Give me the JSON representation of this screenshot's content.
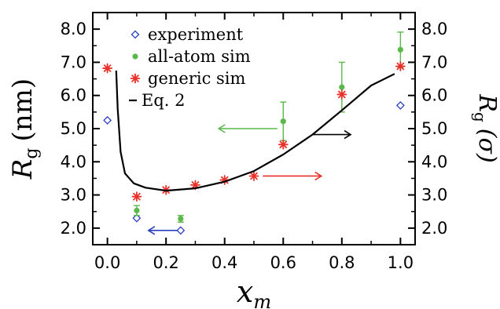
{
  "chart_data": {
    "type": "scatter",
    "x_axis": {
      "label_main": "x",
      "label_sub": "m",
      "lim": [
        -0.05,
        1.05
      ],
      "ticks": [
        0.0,
        0.2,
        0.4,
        0.6,
        0.8,
        1.0
      ],
      "tick_labels": [
        "0.0",
        "0.2",
        "0.4",
        "0.6",
        "0.8",
        "1.0"
      ]
    },
    "y_axis_left": {
      "label_main": "R",
      "label_sub": "g",
      "label_unit": "(nm)",
      "lim": [
        1.5,
        8.5
      ],
      "ticks": [
        2.0,
        3.0,
        4.0,
        5.0,
        6.0,
        7.0,
        8.0
      ],
      "tick_labels": [
        "2.0",
        "3.0",
        "4.0",
        "5.0",
        "6.0",
        "7.0",
        "8.0"
      ]
    },
    "y_axis_right": {
      "label_main": "R",
      "label_sub": "g",
      "label_unit": "(σ)",
      "lim": [
        1.5,
        8.5
      ],
      "ticks": [
        2.0,
        3.0,
        4.0,
        5.0,
        6.0,
        7.0,
        8.0
      ],
      "tick_labels": [
        "2.0",
        "3.0",
        "4.0",
        "5.0",
        "6.0",
        "7.0",
        "8.0"
      ]
    },
    "legend": {
      "placement": "top-left",
      "entries": [
        {
          "label": "experiment",
          "series": "experiment"
        },
        {
          "label": "all-atom sim",
          "series": "allatom"
        },
        {
          "label": "generic sim",
          "series": "generic"
        },
        {
          "label": "Eq. 2",
          "series": "eq2"
        }
      ]
    },
    "series": [
      {
        "key": "experiment",
        "name": "experiment",
        "marker": "diamond-open",
        "color": "#2b3fbf",
        "axis": "left",
        "points": [
          {
            "x": 0.0,
            "y": 5.25
          },
          {
            "x": 0.1,
            "y": 2.3
          },
          {
            "x": 0.25,
            "y": 1.93
          },
          {
            "x": 1.0,
            "y": 5.7
          }
        ]
      },
      {
        "key": "allatom",
        "name": "all-atom sim",
        "marker": "circle-filled",
        "color": "#5ab94a",
        "axis": "left",
        "points": [
          {
            "x": 0.1,
            "y": 2.53,
            "err": 0.15
          },
          {
            "x": 0.25,
            "y": 2.28,
            "err": 0.1
          },
          {
            "x": 0.6,
            "y": 5.22,
            "err": 0.58
          },
          {
            "x": 0.8,
            "y": 6.25,
            "err": 0.75
          },
          {
            "x": 1.0,
            "y": 7.38,
            "err": 0.53
          }
        ]
      },
      {
        "key": "generic",
        "name": "generic sim",
        "marker": "asterisk",
        "color": "#e8312a",
        "axis": "right",
        "points": [
          {
            "x": 0.0,
            "y": 6.82
          },
          {
            "x": 0.1,
            "y": 2.95
          },
          {
            "x": 0.2,
            "y": 3.15
          },
          {
            "x": 0.3,
            "y": 3.3
          },
          {
            "x": 0.4,
            "y": 3.45
          },
          {
            "x": 0.5,
            "y": 3.57
          },
          {
            "x": 0.6,
            "y": 4.52
          },
          {
            "x": 0.8,
            "y": 6.03
          },
          {
            "x": 1.0,
            "y": 6.88
          }
        ]
      },
      {
        "key": "eq2",
        "name": "Eq. 2",
        "type": "line",
        "color": "#000000",
        "axis": "right",
        "points": [
          {
            "x": 0.03,
            "y": 6.75
          },
          {
            "x": 0.035,
            "y": 5.6
          },
          {
            "x": 0.045,
            "y": 4.3
          },
          {
            "x": 0.06,
            "y": 3.65
          },
          {
            "x": 0.09,
            "y": 3.35
          },
          {
            "x": 0.13,
            "y": 3.22
          },
          {
            "x": 0.2,
            "y": 3.13
          },
          {
            "x": 0.3,
            "y": 3.2
          },
          {
            "x": 0.4,
            "y": 3.4
          },
          {
            "x": 0.5,
            "y": 3.72
          },
          {
            "x": 0.6,
            "y": 4.22
          },
          {
            "x": 0.7,
            "y": 4.82
          },
          {
            "x": 0.8,
            "y": 5.55
          },
          {
            "x": 0.9,
            "y": 6.3
          },
          {
            "x": 0.98,
            "y": 6.65
          }
        ]
      }
    ],
    "annotations": [
      {
        "type": "arrow",
        "direction": "left",
        "color": "#5ab94a",
        "from": {
          "x": 0.58,
          "y": 5.0
        },
        "to": {
          "x": 0.38,
          "y": 5.0
        },
        "meaning": "all-atom points use left axis"
      },
      {
        "type": "arrow",
        "direction": "left",
        "color": "#2b3fbf",
        "from": {
          "x": 0.24,
          "y": 1.93
        },
        "to": {
          "x": 0.14,
          "y": 1.93
        },
        "meaning": "experiment points use left axis"
      },
      {
        "type": "arrow",
        "direction": "right",
        "color": "#e8312a",
        "from": {
          "x": 0.53,
          "y": 3.57
        },
        "to": {
          "x": 0.73,
          "y": 3.57
        },
        "meaning": "generic sim points use right axis"
      },
      {
        "type": "arrow",
        "direction": "right",
        "color": "#000000",
        "from": {
          "x": 0.7,
          "y": 4.82
        },
        "to": {
          "x": 0.83,
          "y": 4.82
        },
        "meaning": "Eq. 2 curve uses right axis"
      }
    ]
  }
}
